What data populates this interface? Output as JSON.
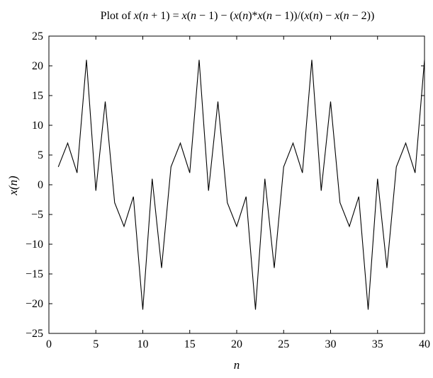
{
  "chart_data": {
    "type": "line",
    "title": "Plot of x(n + 1) = x(n − 1) − (x(n)*x(n − 1))/(x(n) − x(n − 2))",
    "xlabel": "n",
    "ylabel": "x(n)",
    "xlim": [
      0,
      40
    ],
    "ylim": [
      -25,
      25
    ],
    "xticks": [
      0,
      5,
      10,
      15,
      20,
      25,
      30,
      35,
      40
    ],
    "yticks": [
      25,
      20,
      15,
      10,
      5,
      0,
      -5,
      -10,
      -15,
      -20,
      -25
    ],
    "grid": false,
    "series": [
      {
        "x": [
          1,
          2,
          3,
          4,
          5,
          6,
          7,
          8,
          9,
          10,
          11,
          12,
          13,
          14,
          15,
          16,
          17,
          18,
          19,
          20,
          21,
          22,
          23,
          24,
          25,
          26,
          27,
          28,
          29,
          30,
          31,
          32,
          33,
          34,
          35,
          36,
          37,
          38,
          39,
          40
        ],
        "values": [
          3,
          7,
          2,
          21,
          -1,
          14,
          -3,
          -7,
          -2,
          -21,
          1,
          -14,
          3,
          7,
          2,
          21,
          -1,
          14,
          -3,
          -7,
          -2,
          -21,
          1,
          -14,
          3,
          7,
          2,
          21,
          -1,
          14,
          -3,
          -7,
          -2,
          -21,
          1,
          -14,
          3,
          7,
          2,
          21
        ],
        "color": "#000000"
      }
    ]
  }
}
